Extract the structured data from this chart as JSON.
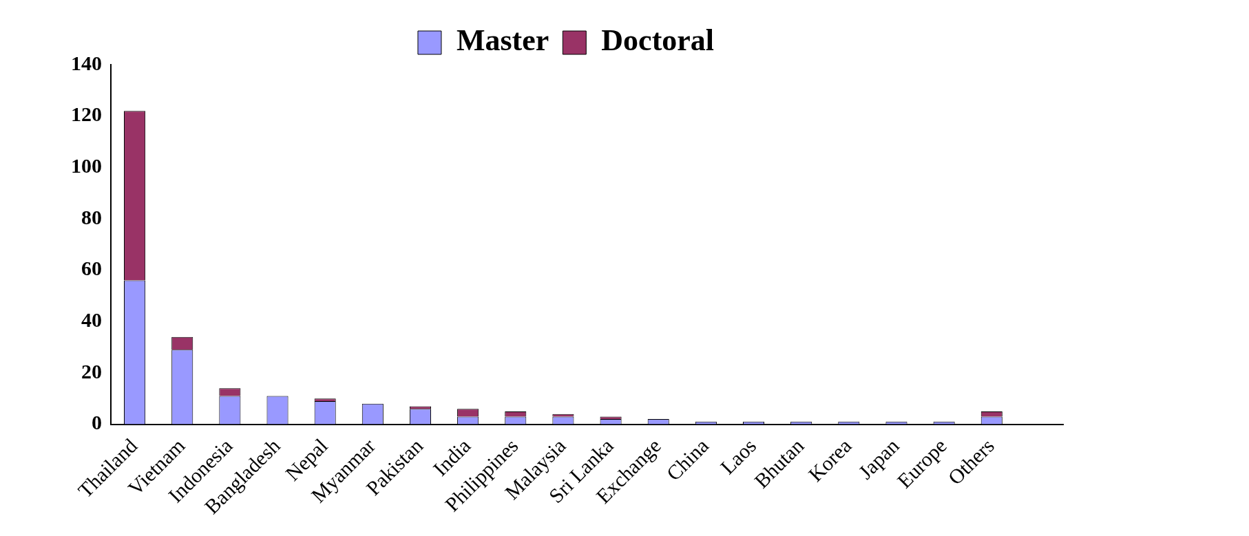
{
  "chart_data": {
    "type": "bar",
    "stacked": true,
    "categories": [
      "Thailand",
      "Vietnam",
      "Indonesia",
      "Bangladesh",
      "Nepal",
      "Myanmar",
      "Pakistan",
      "India",
      "Philippines",
      "Malaysia",
      "Sri Lanka",
      "Exchange",
      "China",
      "Laos",
      "Bhutan",
      "Korea",
      "Japan",
      "Europe",
      "Others",
      null
    ],
    "series": [
      {
        "name": "Master",
        "color": "#9999ff",
        "values": [
          56,
          29,
          11,
          11,
          9,
          8,
          6,
          3,
          3,
          3,
          2,
          2,
          1,
          1,
          1,
          1,
          1,
          1,
          3,
          null
        ]
      },
      {
        "name": "Doctoral",
        "color": "#993366",
        "values": [
          66,
          5,
          3,
          0,
          1,
          0,
          1,
          3,
          2,
          1,
          1,
          0,
          0,
          0,
          0,
          0,
          0,
          0,
          2,
          null
        ]
      }
    ],
    "ylim": [
      0,
      140
    ],
    "yticks": [
      0,
      20,
      40,
      60,
      80,
      100,
      120,
      140
    ],
    "grid": false,
    "legend": "top"
  }
}
